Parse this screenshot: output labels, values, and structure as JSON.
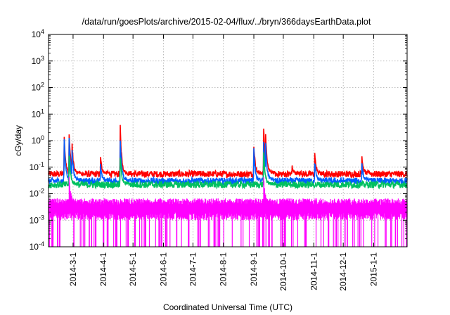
{
  "chart_data": {
    "type": "line",
    "title": "/data/run/goesPlots/archive/2015-02-04/flux/../bryn/366daysEarthData.plot",
    "xlabel": "Coordinated Universal Time (UTC)",
    "ylabel": "cGy/day",
    "yscale": "log",
    "ylim": [
      0.0001,
      10000
    ],
    "xlim": [
      "2014-02-04",
      "2015-02-04"
    ],
    "grid": true,
    "y_ticks": [
      {
        "value": 0.0001,
        "base": "10",
        "exp": "-4"
      },
      {
        "value": 0.001,
        "base": "10",
        "exp": "-3"
      },
      {
        "value": 0.01,
        "base": "10",
        "exp": "-2"
      },
      {
        "value": 0.1,
        "base": "10",
        "exp": "-1"
      },
      {
        "value": 1,
        "base": "10",
        "exp": "0"
      },
      {
        "value": 10,
        "base": "10",
        "exp": "1"
      },
      {
        "value": 100,
        "base": "10",
        "exp": "2"
      },
      {
        "value": 1000,
        "base": "10",
        "exp": "3"
      },
      {
        "value": 10000,
        "base": "10",
        "exp": "4"
      }
    ],
    "x_ticks": [
      "2014-3-1",
      "2014-4-1",
      "2014-5-1",
      "2014-6-1",
      "2014-7-1",
      "2014-8-1",
      "2014-9-1",
      "2014-10-1",
      "2014-11-1",
      "2014-12-1",
      "2015-1-1"
    ],
    "x_tick_dates": [
      "2014-03-01",
      "2014-04-01",
      "2014-05-01",
      "2014-06-01",
      "2014-07-01",
      "2014-08-01",
      "2014-09-01",
      "2014-10-01",
      "2014-11-01",
      "2014-12-01",
      "2015-01-01"
    ],
    "series": [
      {
        "color": "#ff0000",
        "baseline": 0.055,
        "peaks": [
          [
            "2014-02-20",
            1.3
          ],
          [
            "2014-02-25",
            1.9
          ],
          [
            "2014-02-28",
            0.7
          ],
          [
            "2014-03-29",
            0.22
          ],
          [
            "2014-04-18",
            3.3
          ],
          [
            "2014-09-01",
            0.7
          ],
          [
            "2014-09-11",
            3.2
          ],
          [
            "2014-09-13",
            1.8
          ],
          [
            "2014-10-10",
            0.1
          ],
          [
            "2014-11-02",
            0.3
          ],
          [
            "2014-12-20",
            0.25
          ]
        ]
      },
      {
        "color": "#0060ff",
        "baseline": 0.03,
        "peaks": [
          [
            "2014-02-20",
            1.2
          ],
          [
            "2014-02-25",
            1.3
          ],
          [
            "2014-02-28",
            0.5
          ],
          [
            "2014-03-29",
            0.12
          ],
          [
            "2014-04-18",
            1.2
          ],
          [
            "2014-09-01",
            0.45
          ],
          [
            "2014-09-11",
            1.0
          ],
          [
            "2014-09-13",
            0.7
          ],
          [
            "2014-11-02",
            0.15
          ],
          [
            "2014-12-20",
            0.13
          ]
        ]
      },
      {
        "color": "#00c060",
        "baseline": 0.022,
        "peaks": [
          [
            "2014-02-25",
            0.3
          ],
          [
            "2014-04-18",
            0.25
          ],
          [
            "2014-09-11",
            0.35
          ]
        ]
      },
      {
        "color": "#ff00ff",
        "baseline": 0.005,
        "low": 0.0001,
        "peaks": [
          [
            "2014-02-25",
            0.04
          ],
          [
            "2014-09-11",
            0.04
          ]
        ]
      }
    ]
  }
}
